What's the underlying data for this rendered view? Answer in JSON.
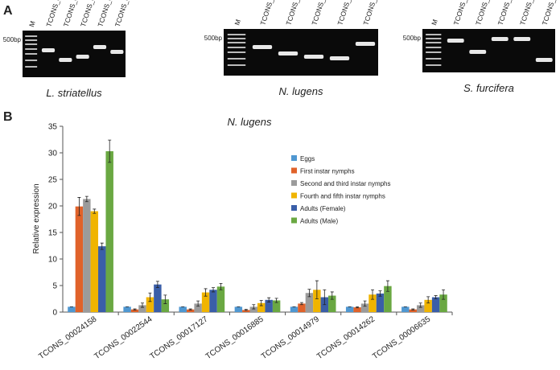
{
  "panel_a": {
    "label": "A",
    "gels": [
      {
        "lanes": [
          "M",
          "TCONS_00025424",
          "TCONS_00008260",
          "TCONS_00002613",
          "TCONS_00025686",
          "TCONS_00003466"
        ],
        "marker": "500bp",
        "species": "L. striatellus"
      },
      {
        "lanes": [
          "M",
          "TCONS_00024158",
          "TCONS_00022544",
          "TCONS_00017127",
          "TCONS_00014979",
          "TCONS_00006635"
        ],
        "marker": "500bp",
        "species": "N. lugens"
      },
      {
        "lanes": [
          "M",
          "TCONS_00023659",
          "TCONS_00026590",
          "TCONS_00031118",
          "TCONS_00036274",
          "TCONS_00006341"
        ],
        "marker": "500bp",
        "species": "S. furcifera"
      }
    ]
  },
  "panel_b": {
    "label": "B"
  },
  "chart_data": {
    "type": "bar",
    "title": "N. lugens",
    "y_label": "Relative expression",
    "categories": [
      "TCONS_00024158",
      "TCONS_00022544",
      "TCONS_00017127",
      "TCONS_00016885",
      "TCONS_00014979",
      "TCONS_00014262",
      "TCONS_00006635"
    ],
    "series": [
      {
        "name": "Eggs",
        "color": "#4f97d1",
        "values": [
          1,
          1,
          1,
          1,
          1,
          1,
          1
        ],
        "errors": [
          0,
          0,
          0,
          0,
          0,
          0,
          0
        ]
      },
      {
        "name": "First instar nymphs",
        "color": "#e0622a",
        "values": [
          19.9,
          0.5,
          0.5,
          0.4,
          1.6,
          0.9,
          0.5
        ],
        "errors": [
          1.7,
          0.1,
          0.1,
          0.1,
          0.2,
          0.1,
          0.1
        ]
      },
      {
        "name": "Second and third instar nymphs",
        "color": "#9b9b9b",
        "values": [
          21.3,
          1.3,
          1.6,
          1.0,
          3.6,
          1.6,
          1.3
        ],
        "errors": [
          0.5,
          0.4,
          0.5,
          0.4,
          0.7,
          0.5,
          0.4
        ]
      },
      {
        "name": "Fourth and fifth instar nymphs",
        "color": "#f0b400",
        "values": [
          19.0,
          2.8,
          3.7,
          1.7,
          4.2,
          3.3,
          2.3
        ],
        "errors": [
          0.4,
          0.8,
          0.7,
          0.5,
          1.7,
          0.9,
          0.6
        ]
      },
      {
        "name": "Adults (Female)",
        "color": "#3a5ea8",
        "values": [
          12.4,
          5.2,
          4.2,
          2.3,
          2.8,
          3.5,
          2.8
        ],
        "errors": [
          0.6,
          0.6,
          0.4,
          0.4,
          1.4,
          0.5,
          0.3
        ]
      },
      {
        "name": "Adults (Male)",
        "color": "#6aa842",
        "values": [
          30.3,
          2.4,
          4.8,
          2.2,
          3.1,
          4.9,
          3.3
        ],
        "errors": [
          2.1,
          0.8,
          0.6,
          0.4,
          0.7,
          1.0,
          0.9
        ]
      }
    ],
    "ylim": [
      0,
      35
    ],
    "yticks": [
      0,
      5,
      10,
      15,
      20,
      25,
      30,
      35
    ],
    "grid": false
  }
}
